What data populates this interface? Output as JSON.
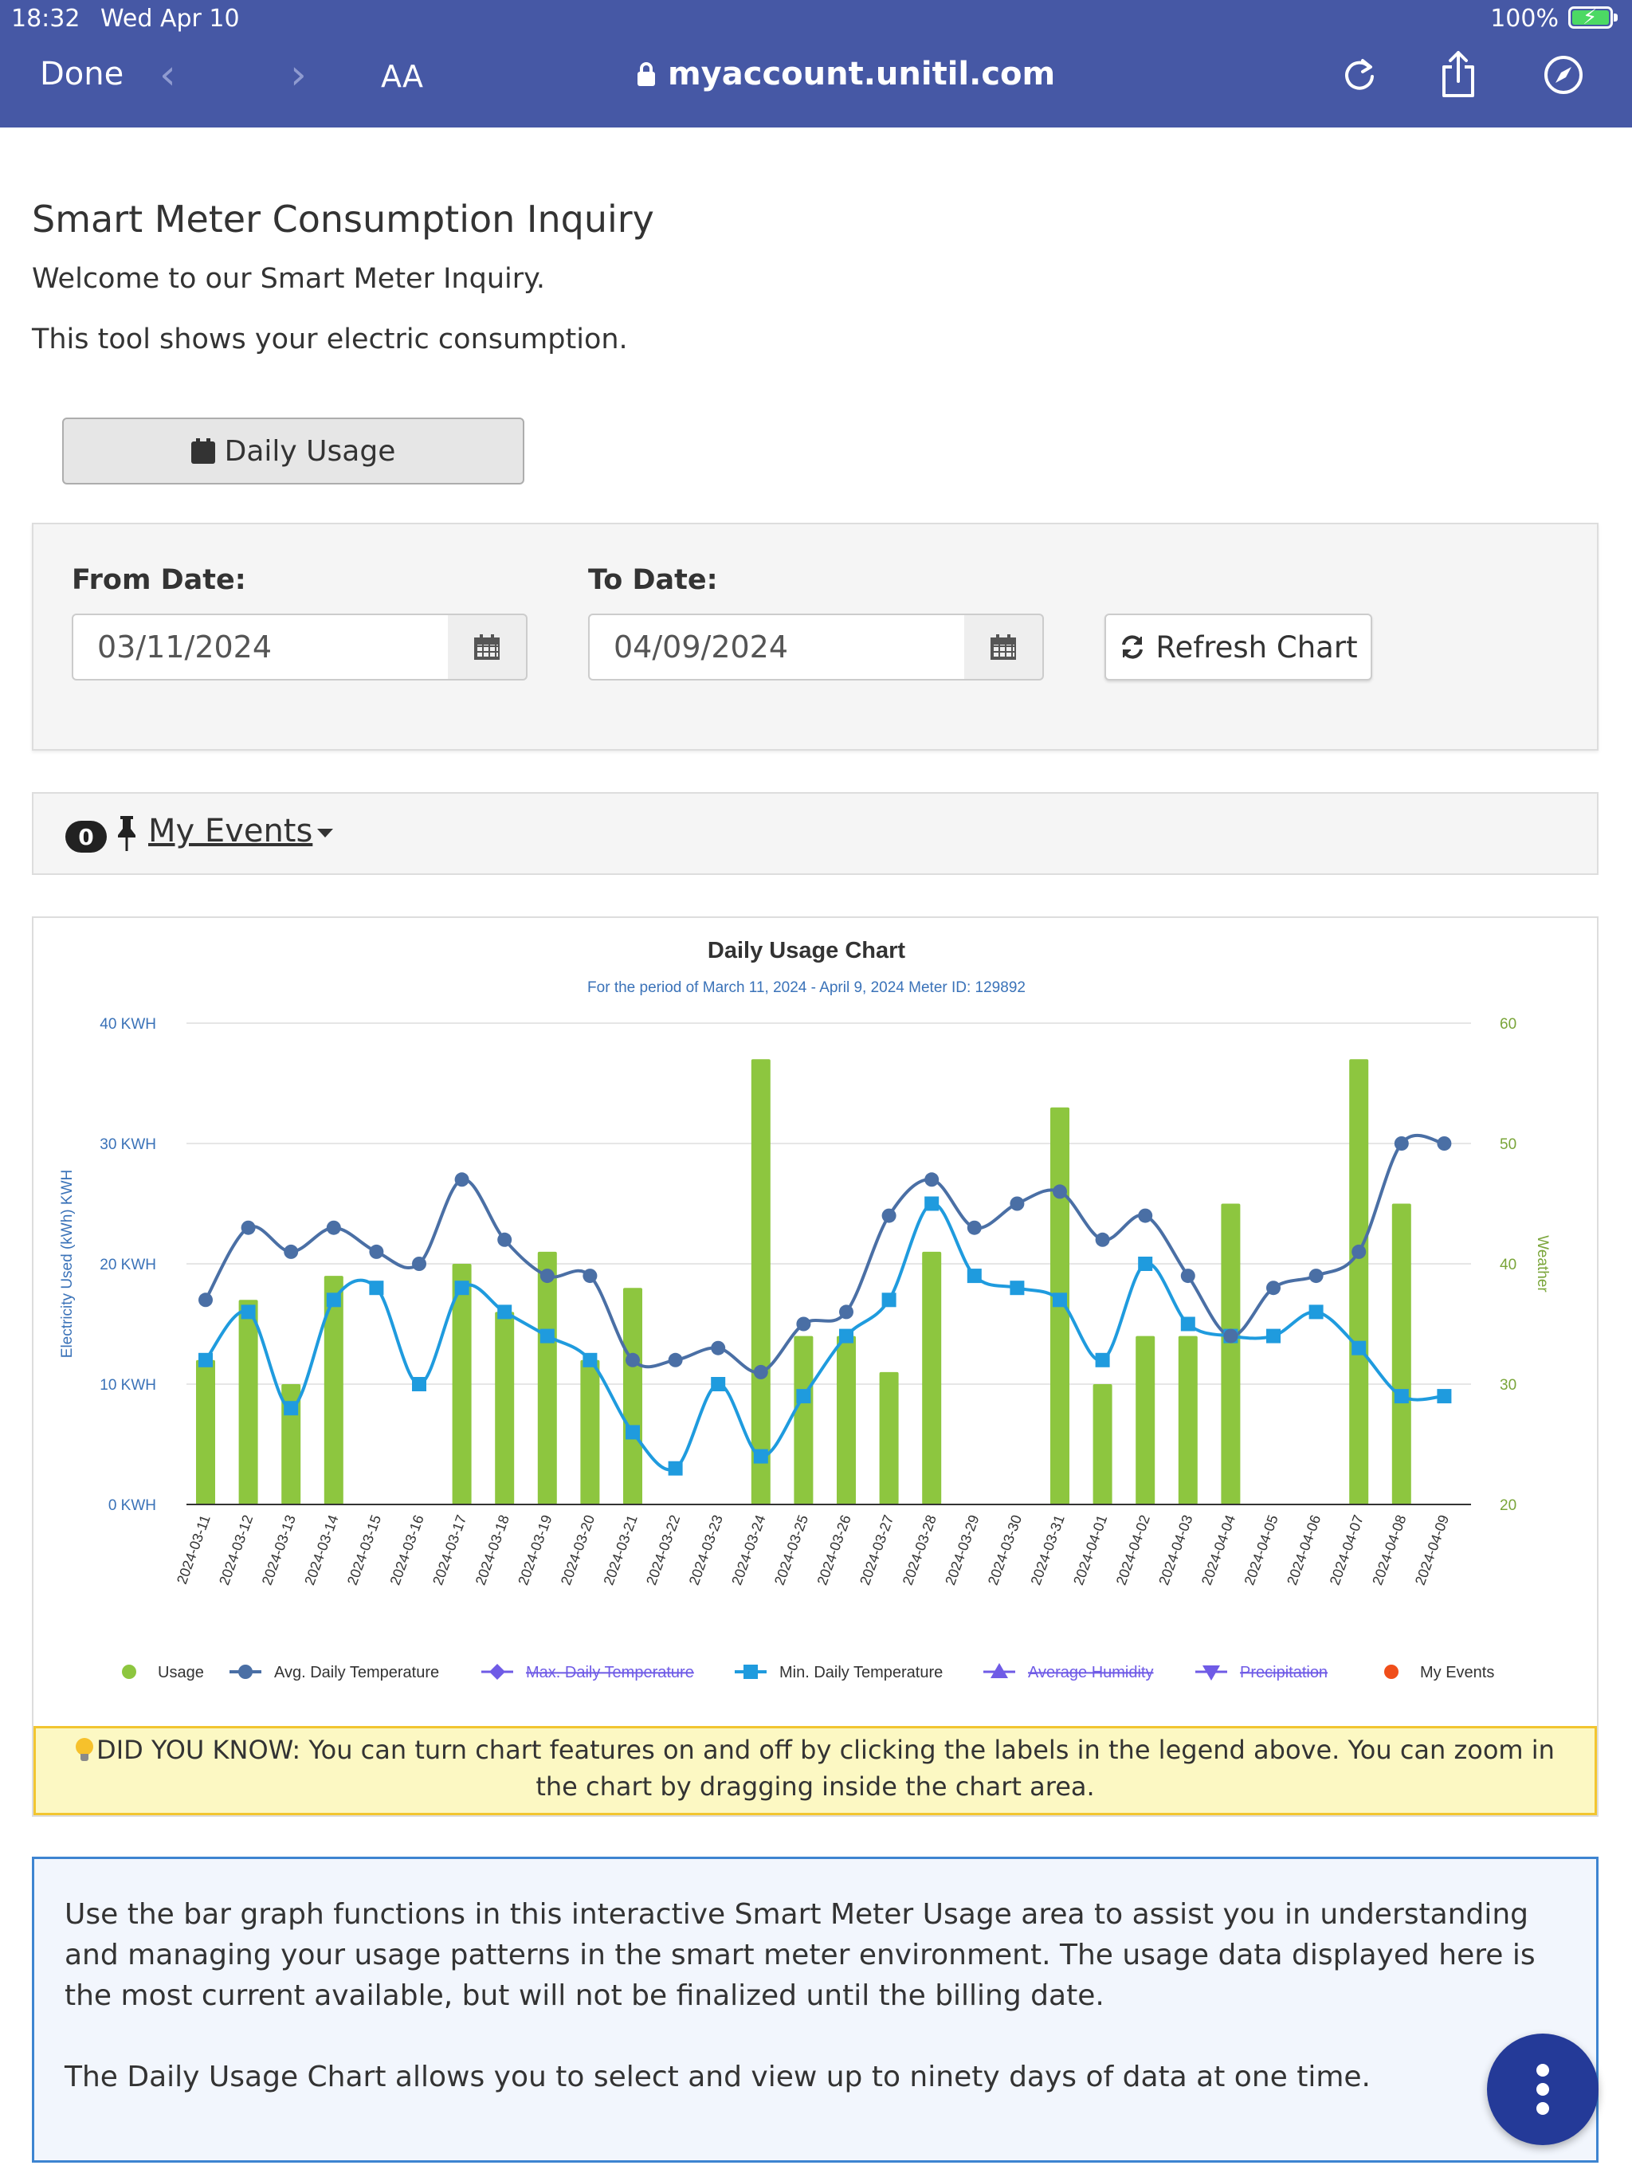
{
  "status_bar": {
    "time": "18:32",
    "date": "Wed Apr 10",
    "battery": "100%"
  },
  "browser": {
    "done": "Done",
    "text_size": "AA",
    "url": "myaccount.unitil.com"
  },
  "page": {
    "title": "Smart Meter Consumption Inquiry",
    "welcome": "Welcome to our Smart Meter Inquiry.",
    "description": "This tool shows your electric consumption."
  },
  "usage_button": {
    "label": "Daily Usage"
  },
  "date_form": {
    "from_label": "From Date:",
    "from_value": "03/11/2024",
    "to_label": "To Date:",
    "to_value": "04/09/2024",
    "refresh_label": "Refresh Chart"
  },
  "events": {
    "count": "0",
    "label": "My Events"
  },
  "colors": {
    "usage": "#8dc63f",
    "avg_temp": "#4a6fa5",
    "min_temp": "#1f9bde",
    "disabled": "#6f5be6",
    "events": "#f04e1a",
    "weather_axis": "#7aa53a"
  },
  "chart_data": {
    "type": "bar",
    "title": "Daily Usage Chart",
    "subtitle": "For the period of March 11, 2024 - April 9, 2024 Meter ID: 129892",
    "ylabel": "Electricity Used (kWh) KWH",
    "y2label": "Weather",
    "ylim": [
      0,
      40
    ],
    "y2lim": [
      20,
      60
    ],
    "y_ticks": [
      "0 KWH",
      "10 KWH",
      "20 KWH",
      "30 KWH",
      "40 KWH"
    ],
    "y2_ticks": [
      "20",
      "30",
      "40",
      "50",
      "60"
    ],
    "categories": [
      "2024-03-11",
      "2024-03-12",
      "2024-03-13",
      "2024-03-14",
      "2024-03-15",
      "2024-03-16",
      "2024-03-17",
      "2024-03-18",
      "2024-03-19",
      "2024-03-20",
      "2024-03-21",
      "2024-03-22",
      "2024-03-23",
      "2024-03-24",
      "2024-03-25",
      "2024-03-26",
      "2024-03-27",
      "2024-03-28",
      "2024-03-29",
      "2024-03-30",
      "2024-03-31",
      "2024-04-01",
      "2024-04-02",
      "2024-04-03",
      "2024-04-04",
      "2024-04-05",
      "2024-04-06",
      "2024-04-07",
      "2024-04-08",
      "2024-04-09"
    ],
    "series": [
      {
        "name": "Usage",
        "axis": "kwh",
        "values": [
          12,
          17,
          10,
          19,
          0,
          0,
          20,
          16,
          21,
          12,
          18,
          0,
          0,
          37,
          14,
          14,
          11,
          21,
          0,
          0,
          33,
          10,
          14,
          14,
          25,
          0,
          0,
          37,
          25,
          0
        ]
      },
      {
        "name": "Avg. Daily Temperature",
        "axis": "weather",
        "values": [
          37,
          43,
          41,
          43,
          41,
          40,
          47,
          42,
          39,
          39,
          32,
          32,
          33,
          31,
          35,
          36,
          44,
          47,
          43,
          45,
          46,
          42,
          44,
          39,
          34,
          38,
          39,
          41,
          50,
          50
        ]
      },
      {
        "name": "Min. Daily Temperature",
        "axis": "weather",
        "values": [
          32,
          36,
          28,
          37,
          38,
          30,
          38,
          36,
          34,
          32,
          26,
          23,
          30,
          24,
          29,
          34,
          37,
          45,
          39,
          38,
          37,
          32,
          40,
          35,
          34,
          34,
          36,
          33,
          29,
          29
        ]
      }
    ],
    "legend": [
      {
        "label": "Usage",
        "enabled": true
      },
      {
        "label": "Avg. Daily Temperature",
        "enabled": true
      },
      {
        "label": "Max. Daily Temperature",
        "enabled": false
      },
      {
        "label": "Min. Daily Temperature",
        "enabled": true
      },
      {
        "label": "Average Humidity",
        "enabled": false
      },
      {
        "label": "Precipitation",
        "enabled": false
      },
      {
        "label": "My Events",
        "enabled": true
      }
    ],
    "legend_position": "bottom",
    "grid": true
  },
  "tip": "DID YOU KNOW: You can turn chart features on and off by clicking the labels in the legend above. You can zoom in the chart by dragging inside the chart area.",
  "info": {
    "p1": "Use the bar graph functions in this interactive Smart Meter Usage area to assist you in understanding and managing your usage patterns in the smart meter environment. The usage data displayed here is the most current available, but will not be finalized until the billing date.",
    "p2": "The Daily Usage Chart allows you to select and view up to ninety days of data at one time."
  }
}
